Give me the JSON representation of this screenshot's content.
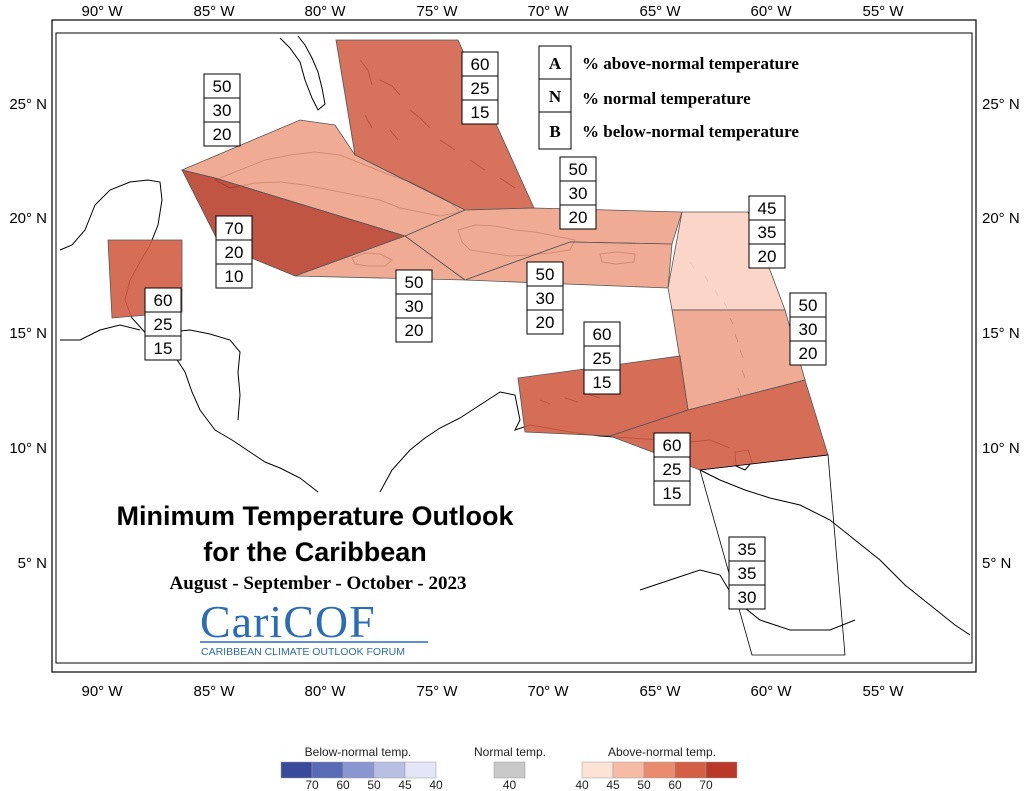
{
  "lon_ticks": [
    "90° W",
    "85° W",
    "80° W",
    "75° W",
    "70° W",
    "65° W",
    "60° W",
    "55° W"
  ],
  "lat_ticks": [
    "25° N",
    "20° N",
    "15° N",
    "10° N",
    "5° N"
  ],
  "key": {
    "rows": [
      {
        "letter": "A",
        "text": "% above-normal temperature"
      },
      {
        "letter": "N",
        "text": "% normal temperature"
      },
      {
        "letter": "B",
        "text": "% below-normal temperature"
      }
    ]
  },
  "regions": [
    {
      "name": "bahamas",
      "values": [
        "60",
        "25",
        "15"
      ]
    },
    {
      "name": "cuba",
      "values": [
        "50",
        "30",
        "20"
      ]
    },
    {
      "name": "cayman-jamaica-west",
      "values": [
        "70",
        "20",
        "10"
      ]
    },
    {
      "name": "belize",
      "values": [
        "60",
        "25",
        "15"
      ]
    },
    {
      "name": "jamaica",
      "values": [
        "50",
        "30",
        "20"
      ]
    },
    {
      "name": "hispaniola",
      "values": [
        "50",
        "30",
        "20"
      ]
    },
    {
      "name": "turks-caicos",
      "values": [
        "50",
        "30",
        "20"
      ]
    },
    {
      "name": "northern-lesser-antilles",
      "values": [
        "45",
        "35",
        "20"
      ]
    },
    {
      "name": "windward-islands",
      "values": [
        "50",
        "30",
        "20"
      ]
    },
    {
      "name": "abc-islands",
      "values": [
        "60",
        "25",
        "15"
      ]
    },
    {
      "name": "trinidad-guyana-coast",
      "values": [
        "60",
        "25",
        "15"
      ]
    },
    {
      "name": "guianas",
      "values": [
        "35",
        "35",
        "30"
      ]
    }
  ],
  "title": {
    "line1": "Minimum Temperature Outlook",
    "line2": "for the Caribbean",
    "period": "August - September - October - 2023"
  },
  "logo": {
    "name": "CariCOF",
    "tagline": "CARIBBEAN CLIMATE OUTLOOK FORUM"
  },
  "colorbar": {
    "below_label": "Below-normal temp.",
    "normal_label": "Normal temp.",
    "above_label": "Above-normal temp.",
    "below_ticks": [
      "70",
      "60",
      "50",
      "45",
      "40"
    ],
    "normal_ticks": [
      "40"
    ],
    "above_ticks": [
      "40",
      "45",
      "50",
      "60",
      "70"
    ],
    "below_colors": [
      "#3a4a9a",
      "#5a6bb6",
      "#8a96cf",
      "#b8bfe3",
      "#e3e6f6"
    ],
    "normal_color": "#c8c8c8",
    "above_colors": [
      "#fde2d6",
      "#f6bba5",
      "#e98c6e",
      "#d35f45",
      "#b9382a"
    ]
  },
  "colors": {
    "above_40": "#fbd3c4",
    "above_50": "#ee9f85",
    "above_60": "#d25e45",
    "above_70": "#b9432f",
    "normal": "#ffffff"
  }
}
